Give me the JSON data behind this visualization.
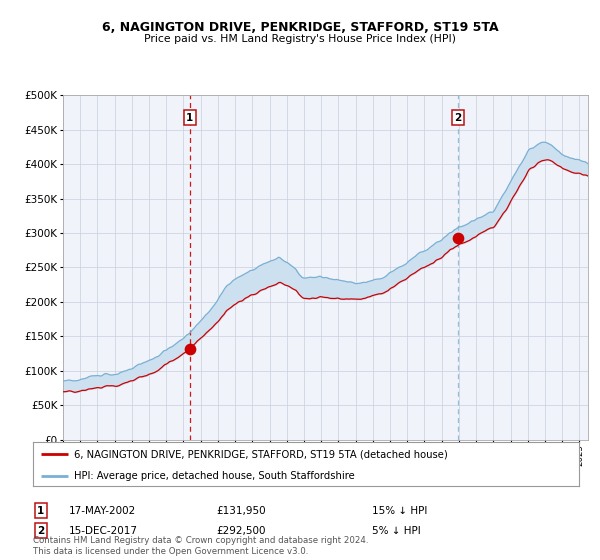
{
  "title": "6, NAGINGTON DRIVE, PENKRIDGE, STAFFORD, ST19 5TA",
  "subtitle": "Price paid vs. HM Land Registry's House Price Index (HPI)",
  "legend_red": "6, NAGINGTON DRIVE, PENKRIDGE, STAFFORD, ST19 5TA (detached house)",
  "legend_blue": "HPI: Average price, detached house, South Staffordshire",
  "transaction1_date": "17-MAY-2002",
  "transaction1_price": 131950,
  "transaction1_label": "15% ↓ HPI",
  "transaction2_date": "15-DEC-2017",
  "transaction2_price": 292500,
  "transaction2_label": "5% ↓ HPI",
  "footnote": "Contains HM Land Registry data © Crown copyright and database right 2024.\nThis data is licensed under the Open Government Licence v3.0.",
  "xmin": 1995.0,
  "xmax": 2025.5,
  "ymin": 0,
  "ymax": 500000,
  "red_color": "#cc0000",
  "blue_color": "#7ab0d4",
  "fill_color": "#cce0f0",
  "bg_color": "#f0f4fa",
  "grid_color": "#c8d0dc",
  "transaction1_x": 2002.37,
  "transaction2_x": 2017.96
}
